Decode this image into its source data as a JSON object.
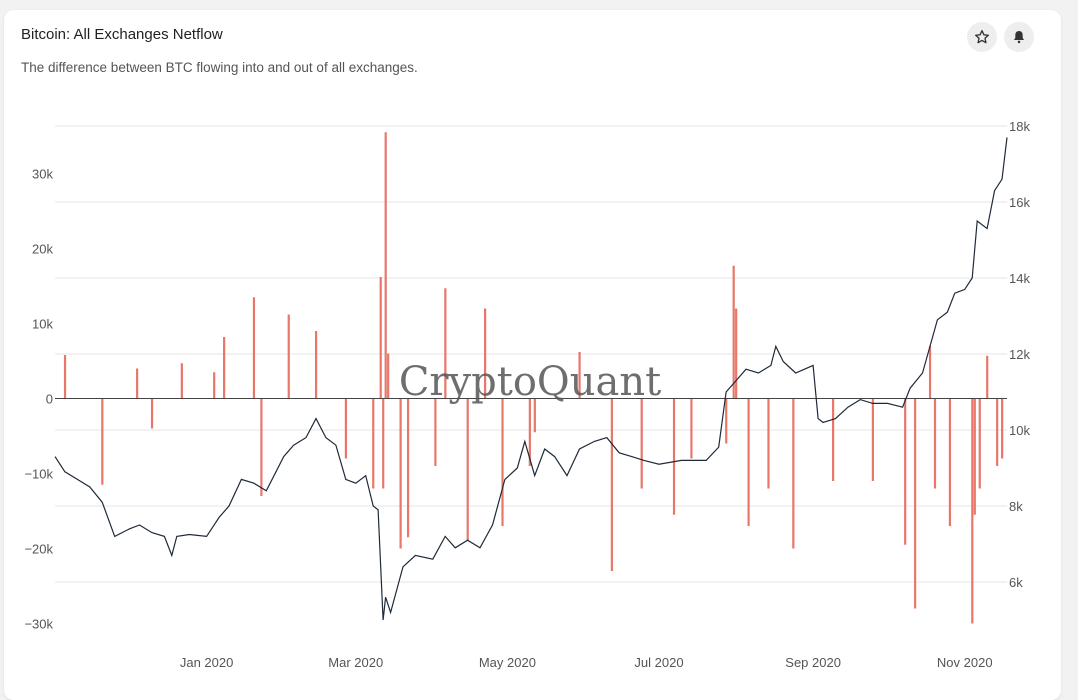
{
  "header": {
    "title": "Bitcoin: All Exchanges Netflow",
    "subtitle": "The difference between BTC flowing into and out of all exchanges."
  },
  "icons": {
    "star": "star-icon",
    "bell": "bell-icon"
  },
  "watermark": "CryptoQuant",
  "colors": {
    "bars": "#e8776a",
    "line": "#1f2a38",
    "grid": "#e6e6e6"
  },
  "chart_data": {
    "type": "bar",
    "title": "Bitcoin: All Exchanges Netflow",
    "x_tick_labels": [
      "Jan 2020",
      "Mar 2020",
      "May 2020",
      "Jul 2020",
      "Sep 2020",
      "Nov 2020"
    ],
    "x_tick_dates": [
      "2020-01-01",
      "2020-03-01",
      "2020-05-01",
      "2020-07-01",
      "2020-09-01",
      "2020-11-01"
    ],
    "date_range": [
      "2019-11-01",
      "2020-11-18"
    ],
    "y_left": {
      "ylim": [
        -31000,
        37000
      ],
      "ticks": [
        -30000,
        -20000,
        -10000,
        0,
        10000,
        20000,
        30000
      ],
      "tick_labels": [
        "−30k",
        "−20k",
        "−10k",
        "0",
        "10k",
        "20k",
        "30k"
      ]
    },
    "y_right": {
      "ylim": [
        4600,
        18000
      ],
      "ticks": [
        6000,
        8000,
        10000,
        12000,
        14000,
        16000,
        18000
      ],
      "tick_labels": [
        "6k",
        "8k",
        "10k",
        "12k",
        "14k",
        "16k",
        "18k"
      ]
    },
    "grid": true,
    "series": [
      {
        "type": "bar",
        "axis": "left",
        "x": [
          "2019-11-05",
          "2019-11-20",
          "2019-12-04",
          "2019-12-10",
          "2019-12-22",
          "2020-01-04",
          "2020-01-08",
          "2020-01-20",
          "2020-01-23",
          "2020-02-03",
          "2020-02-14",
          "2020-02-26",
          "2020-03-08",
          "2020-03-11",
          "2020-03-12",
          "2020-03-13",
          "2020-03-14",
          "2020-03-19",
          "2020-03-22",
          "2020-04-02",
          "2020-04-06",
          "2020-04-15",
          "2020-04-22",
          "2020-04-29",
          "2020-05-10",
          "2020-05-12",
          "2020-05-30",
          "2020-06-12",
          "2020-06-24",
          "2020-07-07",
          "2020-07-14",
          "2020-07-28",
          "2020-07-31",
          "2020-08-01",
          "2020-08-06",
          "2020-08-14",
          "2020-08-24",
          "2020-09-09",
          "2020-09-25",
          "2020-10-08",
          "2020-10-12",
          "2020-10-18",
          "2020-10-20",
          "2020-10-26",
          "2020-11-04",
          "2020-11-05",
          "2020-11-07",
          "2020-11-10",
          "2020-11-14",
          "2020-11-16"
        ],
        "values": [
          5800,
          -11500,
          4000,
          -4000,
          4700,
          3500,
          8200,
          13500,
          -13000,
          11200,
          9000,
          -8000,
          -12000,
          16200,
          -12000,
          35500,
          6000,
          -20000,
          -18500,
          -9000,
          14700,
          -19000,
          12000,
          -17000,
          -9000,
          -4500,
          6200,
          -23000,
          -12000,
          -15500,
          -8000,
          -6000,
          17700,
          12000,
          -17000,
          -12000,
          -20000,
          -11000,
          -11000,
          -19500,
          -28000,
          7000,
          -12000,
          -17000,
          -30000,
          -15500,
          -12000,
          5700,
          -9000,
          -8000
        ]
      },
      {
        "type": "line",
        "axis": "right",
        "x": [
          "2019-11-01",
          "2019-11-05",
          "2019-11-10",
          "2019-11-15",
          "2019-11-20",
          "2019-11-25",
          "2019-12-01",
          "2019-12-05",
          "2019-12-10",
          "2019-12-15",
          "2019-12-18",
          "2019-12-20",
          "2019-12-25",
          "2020-01-01",
          "2020-01-06",
          "2020-01-10",
          "2020-01-15",
          "2020-01-20",
          "2020-01-25",
          "2020-02-01",
          "2020-02-05",
          "2020-02-10",
          "2020-02-14",
          "2020-02-18",
          "2020-02-22",
          "2020-02-26",
          "2020-03-01",
          "2020-03-05",
          "2020-03-08",
          "2020-03-10",
          "2020-03-12",
          "2020-03-13",
          "2020-03-15",
          "2020-03-20",
          "2020-03-25",
          "2020-04-01",
          "2020-04-06",
          "2020-04-10",
          "2020-04-15",
          "2020-04-20",
          "2020-04-25",
          "2020-04-30",
          "2020-05-05",
          "2020-05-08",
          "2020-05-12",
          "2020-05-16",
          "2020-05-20",
          "2020-05-25",
          "2020-05-30",
          "2020-06-05",
          "2020-06-10",
          "2020-06-15",
          "2020-06-20",
          "2020-06-25",
          "2020-07-01",
          "2020-07-10",
          "2020-07-20",
          "2020-07-25",
          "2020-07-28",
          "2020-08-01",
          "2020-08-05",
          "2020-08-10",
          "2020-08-15",
          "2020-08-17",
          "2020-08-20",
          "2020-08-25",
          "2020-09-01",
          "2020-09-03",
          "2020-09-05",
          "2020-09-10",
          "2020-09-15",
          "2020-09-20",
          "2020-09-25",
          "2020-10-01",
          "2020-10-07",
          "2020-10-10",
          "2020-10-15",
          "2020-10-21",
          "2020-10-25",
          "2020-10-28",
          "2020-11-01",
          "2020-11-04",
          "2020-11-06",
          "2020-11-10",
          "2020-11-13",
          "2020-11-16",
          "2020-11-18"
        ],
        "values": [
          9300,
          8900,
          8700,
          8500,
          8100,
          7200,
          7400,
          7500,
          7300,
          7200,
          6700,
          7200,
          7250,
          7200,
          7700,
          8000,
          8700,
          8600,
          8400,
          9300,
          9600,
          9800,
          10300,
          9800,
          9600,
          8700,
          8600,
          8800,
          8000,
          7900,
          5000,
          5600,
          5200,
          6400,
          6700,
          6600,
          7200,
          6900,
          7100,
          6900,
          7500,
          8700,
          9000,
          9700,
          8800,
          9500,
          9300,
          8800,
          9500,
          9700,
          9800,
          9400,
          9300,
          9200,
          9100,
          9200,
          9200,
          9550,
          11000,
          11300,
          11600,
          11500,
          11700,
          12200,
          11800,
          11500,
          11700,
          10300,
          10200,
          10300,
          10600,
          10800,
          10700,
          10700,
          10600,
          11100,
          11500,
          12900,
          13100,
          13600,
          13700,
          14000,
          15500,
          15300,
          16300,
          16600,
          17700
        ]
      }
    ]
  }
}
